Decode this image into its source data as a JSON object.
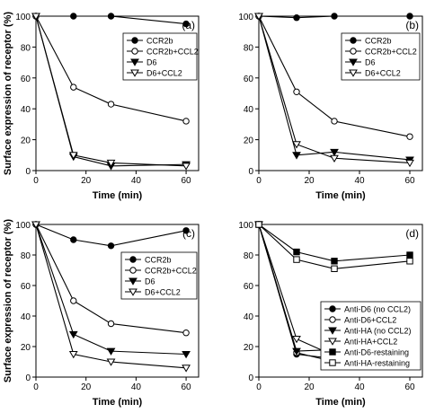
{
  "figure": {
    "y_label": "Surface expression of receptor (%)",
    "x_label": "Time (min)"
  },
  "chart_data": [
    {
      "type": "line",
      "panel_label": "(a)",
      "xlabel": "Time (min)",
      "ylabel": "Surface expression of receptor (%)",
      "xlim": [
        0,
        65
      ],
      "ylim": [
        0,
        100
      ],
      "x_ticks": [
        0,
        20,
        40,
        60
      ],
      "y_ticks": [
        0,
        20,
        40,
        60,
        80,
        100
      ],
      "grid": false,
      "legend_position": "top-right",
      "x": [
        0,
        15,
        30,
        60
      ],
      "series": [
        {
          "name": "CCR2b",
          "marker": "filled-circle",
          "values": [
            100,
            100,
            100,
            95
          ]
        },
        {
          "name": "CCR2b+CCL2",
          "marker": "open-circle",
          "values": [
            100,
            54,
            43,
            32
          ]
        },
        {
          "name": "D6",
          "marker": "filled-triangle-down",
          "values": [
            100,
            9,
            3,
            4
          ]
        },
        {
          "name": "D6+CCL2",
          "marker": "open-triangle-down",
          "values": [
            100,
            10,
            5,
            3
          ]
        }
      ]
    },
    {
      "type": "line",
      "panel_label": "(b)",
      "xlabel": "Time (min)",
      "ylabel": "",
      "xlim": [
        0,
        65
      ],
      "ylim": [
        0,
        100
      ],
      "x_ticks": [
        0,
        20,
        40,
        60
      ],
      "y_ticks": [
        0,
        20,
        40,
        60,
        80,
        100
      ],
      "grid": false,
      "legend_position": "top-right",
      "x": [
        0,
        15,
        30,
        60
      ],
      "series": [
        {
          "name": "CCR2b",
          "marker": "filled-circle",
          "values": [
            100,
            99,
            100,
            100
          ]
        },
        {
          "name": "CCR2b+CCL2",
          "marker": "open-circle",
          "values": [
            100,
            51,
            32,
            22
          ]
        },
        {
          "name": "D6",
          "marker": "filled-triangle-down",
          "values": [
            100,
            10,
            12,
            7
          ]
        },
        {
          "name": "D6+CCL2",
          "marker": "open-triangle-down",
          "values": [
            100,
            17,
            8,
            5
          ]
        }
      ]
    },
    {
      "type": "line",
      "panel_label": "(c)",
      "xlabel": "Time (min)",
      "ylabel": "Surface expression of receptor (%)",
      "xlim": [
        0,
        65
      ],
      "ylim": [
        0,
        100
      ],
      "x_ticks": [
        0,
        20,
        40,
        60
      ],
      "y_ticks": [
        0,
        20,
        40,
        60,
        80,
        100
      ],
      "grid": false,
      "legend_position": "right",
      "x": [
        0,
        15,
        30,
        60
      ],
      "series": [
        {
          "name": "CCR2b",
          "marker": "filled-circle",
          "values": [
            100,
            90,
            86,
            96
          ]
        },
        {
          "name": "CCR2b+CCL2",
          "marker": "open-circle",
          "values": [
            100,
            50,
            35,
            29
          ]
        },
        {
          "name": "D6",
          "marker": "filled-triangle-down",
          "values": [
            100,
            28,
            17,
            15
          ]
        },
        {
          "name": "D6+CCL2",
          "marker": "open-triangle-down",
          "values": [
            100,
            15,
            10,
            6
          ]
        }
      ]
    },
    {
      "type": "line",
      "panel_label": "(d)",
      "xlabel": "Time (min)",
      "ylabel": "",
      "xlim": [
        0,
        65
      ],
      "ylim": [
        0,
        100
      ],
      "x_ticks": [
        0,
        20,
        40,
        60
      ],
      "y_ticks": [
        0,
        20,
        40,
        60,
        80,
        100
      ],
      "grid": false,
      "legend_position": "bottom-right",
      "x": [
        0,
        15,
        30,
        60
      ],
      "series": [
        {
          "name": "Anti-D6 (no CCL2)",
          "marker": "filled-circle",
          "values": [
            100,
            15,
            12,
            12
          ]
        },
        {
          "name": "Anti-D6+CCL2",
          "marker": "open-circle",
          "values": [
            100,
            16,
            10,
            10
          ]
        },
        {
          "name": "Anti-HA (no CCL2)",
          "marker": "filled-triangle-down",
          "values": [
            100,
            17,
            18,
            14
          ]
        },
        {
          "name": "Anti-HA+CCL2",
          "marker": "open-triangle-down",
          "values": [
            100,
            25,
            14,
            11
          ]
        },
        {
          "name": "Anti-D6-restaining",
          "marker": "filled-square",
          "values": [
            100,
            82,
            76,
            80
          ]
        },
        {
          "name": "Anti-HA-restaining",
          "marker": "open-square",
          "values": [
            100,
            77,
            71,
            76
          ]
        }
      ]
    }
  ]
}
